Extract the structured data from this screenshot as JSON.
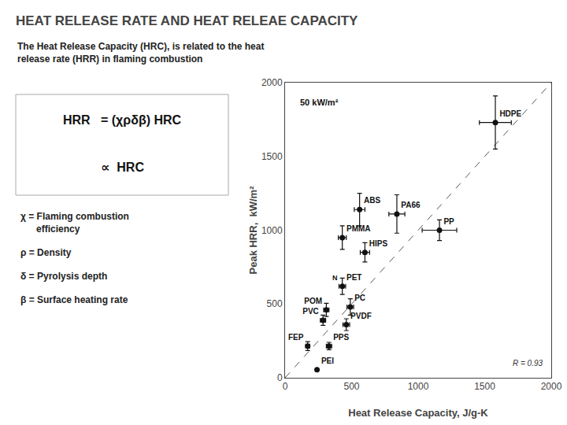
{
  "chart_data": {
    "type": "scatter",
    "title": "HEAT RELEASE RATE AND HEAT RELEAE CAPACITY",
    "subtitle": "The Heat Release Capacity (HRC), is related to the heat\nrelease rate (HRR) in flaming combustion",
    "xlabel": "Heat Release Capacity, J/g-K",
    "ylabel": "Peak HRR,  kW/m²",
    "xlim": [
      0,
      2000
    ],
    "ylim": [
      0,
      2000
    ],
    "xticks": [
      0,
      500,
      1000,
      1500,
      2000
    ],
    "yticks": [
      0,
      500,
      1000,
      1500,
      2000
    ],
    "grid": false,
    "series": [
      {
        "type": "line",
        "line_style": "dashed",
        "color": "#000000",
        "x": [
          0,
          2000
        ],
        "values": [
          0,
          2000
        ]
      },
      {
        "type": "scatter",
        "marker": "circle",
        "color": "#111111",
        "labels": [
          "HDPE",
          "PA66",
          "PP",
          "ABS",
          "PMMA",
          "HIPS",
          "PET",
          "POM",
          "PC",
          "PVC",
          "PVDF",
          "FEP",
          "PPS",
          "PEI"
        ],
        "x": [
          1580,
          840,
          1160,
          560,
          430,
          600,
          430,
          310,
          490,
          285,
          460,
          170,
          330,
          240
        ],
        "values": [
          1730,
          1110,
          1000,
          1140,
          950,
          850,
          620,
          460,
          480,
          390,
          360,
          215,
          215,
          55
        ],
        "xerr": [
          120,
          60,
          130,
          40,
          30,
          35,
          25,
          20,
          25,
          20,
          25,
          15,
          20,
          0
        ],
        "yerr": [
          180,
          130,
          70,
          110,
          80,
          65,
          55,
          45,
          55,
          35,
          40,
          30,
          25,
          0
        ]
      }
    ],
    "annotations": [
      {
        "text": "50 kW/m²"
      },
      {
        "text": "R = 0.93"
      },
      {
        "text": "N",
        "x": 410,
        "y": 640
      }
    ],
    "formula": [
      "HRR   = (χρδβ) HRC",
      "∝  HRC"
    ],
    "definitions": [
      "χ = Flaming combustion\n      efficiency",
      "ρ = Density",
      "δ = Pyrolysis depth",
      "β = Surface heating rate"
    ]
  }
}
